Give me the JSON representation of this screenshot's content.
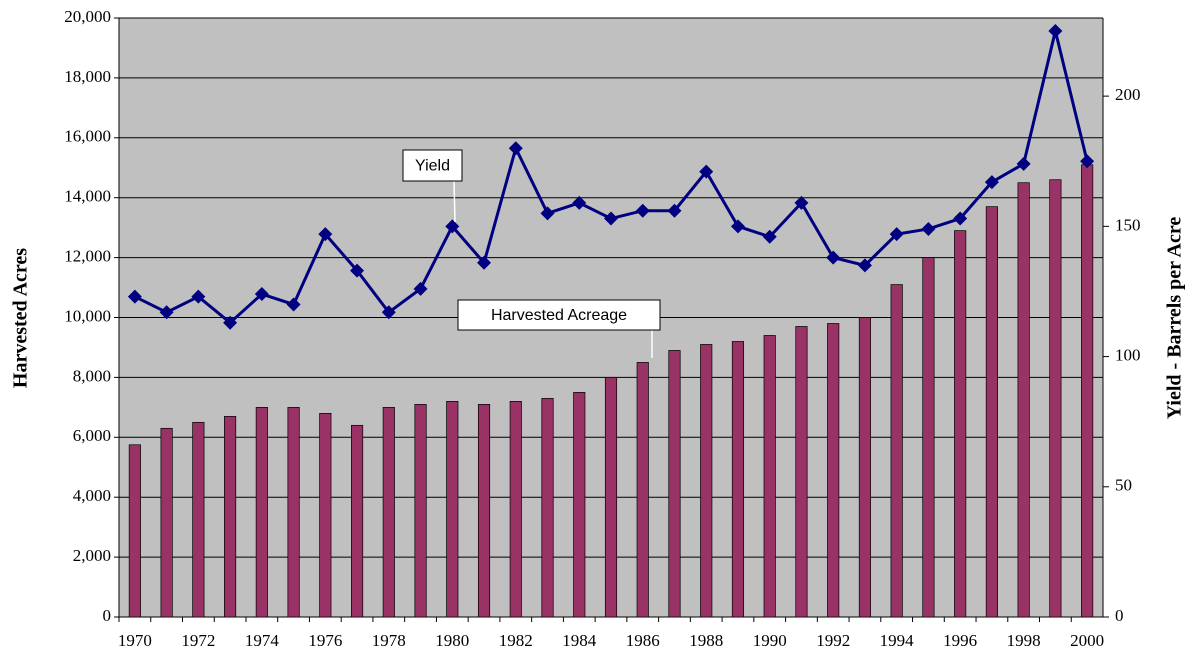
{
  "chart_data": {
    "type": "bar_line",
    "y_label": "Harvested Acres",
    "y2_label": "Yield - Barrels per Acre",
    "annotations": [
      "Yield",
      "Harvested Acreage"
    ],
    "categories": [
      "1970",
      null,
      "1972",
      null,
      "1974",
      null,
      "1976",
      null,
      "1978",
      null,
      "1980",
      null,
      "1982",
      null,
      "1984",
      null,
      "1986",
      null,
      "1988",
      null,
      "1990",
      null,
      "1992",
      null,
      "1994",
      null,
      "1996",
      null,
      "1998",
      null,
      "2000"
    ],
    "series": [
      {
        "name": "Harvested Acreage",
        "type": "bar",
        "color": "#993366",
        "values": [
          5750,
          6300,
          6500,
          6700,
          7000,
          7000,
          6800,
          6400,
          7000,
          7100,
          7200,
          7100,
          7200,
          7300,
          7500,
          8000,
          8500,
          8900,
          9100,
          9200,
          9400,
          9700,
          9800,
          10000,
          11100,
          12000,
          12900,
          13700,
          14500,
          14600,
          15100
        ]
      },
      {
        "name": "Yield",
        "type": "line",
        "axis": "y2",
        "color": "#000080",
        "values": [
          123,
          117,
          123,
          113,
          124,
          120,
          147,
          133,
          117,
          126,
          150,
          136,
          180,
          155,
          159,
          153,
          156,
          156,
          171,
          150,
          146,
          159,
          138,
          135,
          147,
          149,
          153,
          167,
          174,
          225,
          175
        ]
      }
    ],
    "ylim": [
      0,
      20000
    ],
    "yticks": [
      0,
      {
        "value": 2000,
        "label": "2,000"
      },
      {
        "value": 4000,
        "label": "4,000"
      },
      {
        "value": 6000,
        "label": "6,000"
      },
      {
        "value": 8000,
        "label": "8,000"
      },
      {
        "value": 10000,
        "label": "10,000"
      },
      {
        "value": 12000,
        "label": "12,000"
      },
      {
        "value": 14000,
        "label": "14,000"
      },
      {
        "value": 16000,
        "label": "16,000"
      },
      {
        "value": 18000,
        "label": "18,000"
      },
      {
        "value": 20000,
        "label": "20,000"
      }
    ],
    "y2lim": [
      0,
      230
    ],
    "y2ticks": [
      0,
      50,
      100,
      150,
      200
    ],
    "grid": true,
    "plot_background": "#c0c0c0"
  }
}
